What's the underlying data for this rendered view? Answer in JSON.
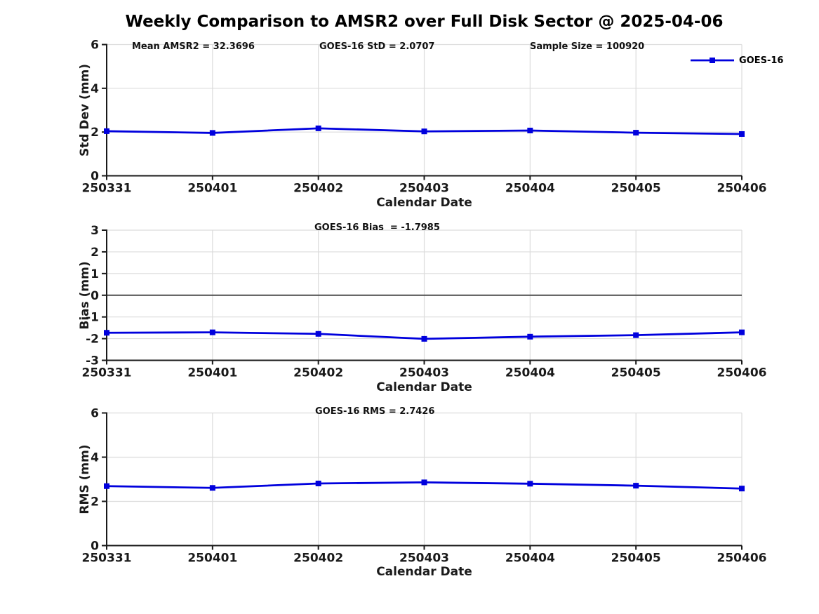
{
  "title": "Weekly Comparison to AMSR2 over Full Disk Sector @ 2025-04-06",
  "legend": {
    "label": "GOES-16",
    "color": "#0000dd"
  },
  "chart_data": {
    "type": "line",
    "categories": [
      "250331",
      "250401",
      "250402",
      "250403",
      "250404",
      "250405",
      "250406"
    ],
    "xlabel": "Calendar Date",
    "legend_position": "top-right",
    "grid": true,
    "panels": [
      {
        "name": "std_dev",
        "ylabel": "Std Dev (mm)",
        "ylim": [
          0,
          6
        ],
        "yticks": [
          0,
          2,
          4,
          6
        ],
        "zero_line": false,
        "series": [
          {
            "name": "GOES-16",
            "values": [
              2.04,
              1.96,
              2.17,
              2.03,
              2.07,
              1.97,
              1.91
            ]
          }
        ],
        "annotations": [
          "Mean AMSR2 = 32.3696",
          "GOES-16 StD = 2.0707",
          "Sample Size = 100920"
        ]
      },
      {
        "name": "bias",
        "ylabel": "Bias (mm)",
        "ylim": [
          -3,
          3
        ],
        "yticks": [
          -3,
          -2,
          -1,
          0,
          1,
          2,
          3
        ],
        "zero_line": true,
        "series": [
          {
            "name": "GOES-16",
            "values": [
              -1.73,
              -1.71,
              -1.78,
              -2.01,
              -1.91,
              -1.84,
              -1.71
            ]
          }
        ],
        "annotations": [
          "GOES-16 Bias  = -1.7985"
        ]
      },
      {
        "name": "rms",
        "ylabel": "RMS (mm)",
        "ylim": [
          0,
          6
        ],
        "yticks": [
          0,
          2,
          4,
          6
        ],
        "zero_line": false,
        "series": [
          {
            "name": "GOES-16",
            "values": [
              2.69,
              2.61,
              2.81,
              2.86,
              2.8,
              2.71,
              2.58
            ]
          }
        ],
        "annotations": [
          "GOES-16 RMS = 2.7426"
        ]
      }
    ],
    "colors": {
      "line": "#0000dd",
      "grid": "#dcdcdc",
      "axis": "#1a1a1a",
      "zero_line": "#4d4d4d",
      "text": "#1a1a1a"
    }
  }
}
